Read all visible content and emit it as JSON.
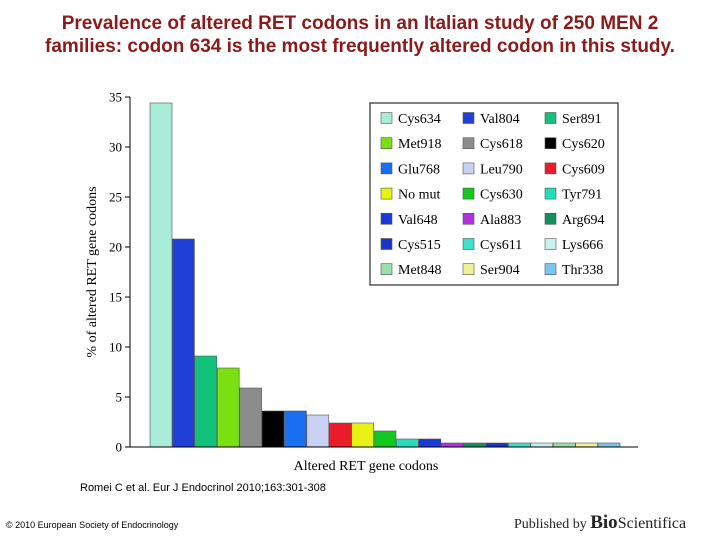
{
  "slide": {
    "title_line1": "Prevalence of altered RET codons in an Italian study of 250 MEN 2",
    "title_line2": "families: codon 634 is the most frequently altered codon in this study."
  },
  "chart_data": {
    "type": "bar",
    "xlabel": "Altered RET gene codons",
    "ylabel": "% of altered RET gene codons",
    "ylim": [
      0,
      35
    ],
    "yticks": [
      0,
      5,
      10,
      15,
      20,
      25,
      30,
      35
    ],
    "grid": false,
    "legend_position": "top-right",
    "categories": [
      "Cys634",
      "Val804",
      "Ser891",
      "Met918",
      "Cys618",
      "Cys620",
      "Glu768",
      "Leu790",
      "Cys609",
      "No mut",
      "Cys630",
      "Tyr791",
      "Val648",
      "Ala883",
      "Arg694",
      "Cys515",
      "Cys611",
      "Lys666",
      "Met848",
      "Ser904",
      "Thr338"
    ],
    "values": [
      34.4,
      20.8,
      9.1,
      7.9,
      5.9,
      3.6,
      3.6,
      3.2,
      2.4,
      2.4,
      1.6,
      0.8,
      0.8,
      0.4,
      0.4,
      0.4,
      0.4,
      0.4,
      0.4,
      0.4,
      0.4
    ],
    "colors": [
      "#a8ecd8",
      "#1f3fd6",
      "#12c27a",
      "#7ae012",
      "#8c8c8c",
      "#000000",
      "#1a6ef0",
      "#c8d0f4",
      "#ea1c2a",
      "#e6f212",
      "#12c81e",
      "#22dcbc",
      "#1838d8",
      "#b030e0",
      "#14905a",
      "#1836c6",
      "#3ce2cc",
      "#c8f0ec",
      "#98e0a8",
      "#f0f098",
      "#78c8ee"
    ]
  },
  "footer": {
    "citation": "Romei C et al. Eur J Endocrinol 2010;163:301-308",
    "copyright": "© 2010 European Society of Endocrinology",
    "published_by": "Published by ",
    "brand_bold": "Bio",
    "brand_rest": "Scientifica"
  }
}
